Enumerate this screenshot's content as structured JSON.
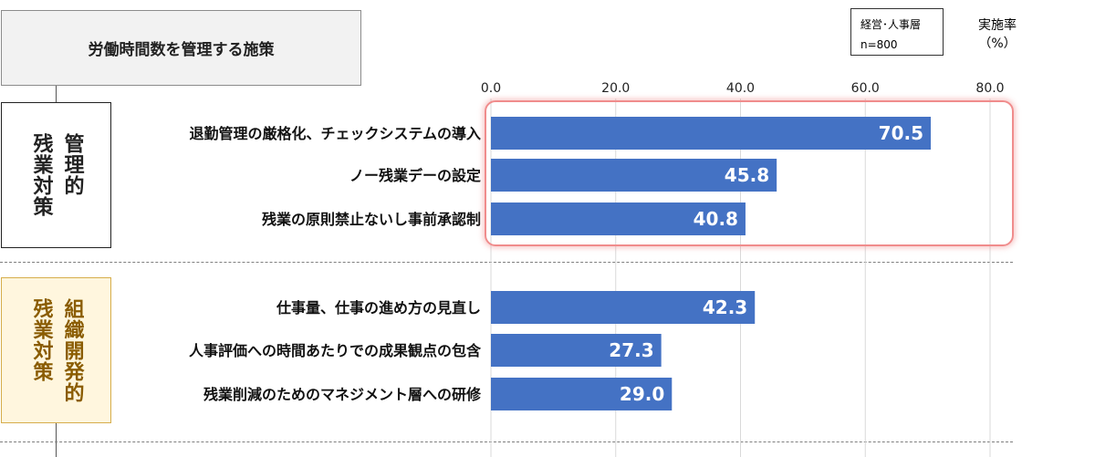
{
  "header": {
    "title": "労働時間数を管理する施策",
    "respondent_group": "経営･人事層",
    "sample_size": "n=800",
    "unit_label_line1": "実施率",
    "unit_label_line2": "（%）"
  },
  "groups": [
    {
      "label": "管理的\n残業対策",
      "type": "management"
    },
    {
      "label": "組織開発的\n残業対策",
      "type": "organizational"
    }
  ],
  "colors": {
    "bar": "#4472c4",
    "highlight": "#f08c8c",
    "org_group_fill": "#fff6de",
    "org_group_text": "#8a5c00"
  },
  "chart_data": {
    "type": "bar",
    "orientation": "horizontal",
    "categories": [
      "退勤管理の厳格化、チェックシステムの導入",
      "ノー残業デーの設定",
      "残業の原則禁止ないし事前承認制",
      "仕事量、仕事の進め方の見直し",
      "人事評価への時間あたりでの成果観点の包含",
      "残業削減のためのマネジメント層への研修"
    ],
    "values": [
      70.5,
      45.8,
      40.8,
      42.3,
      27.3,
      29.0
    ],
    "data_labels": [
      "70.5",
      "45.8",
      "40.8",
      "42.3",
      "27.3",
      "29.0"
    ],
    "xlim": [
      0,
      80
    ],
    "ticks": [
      "0.0",
      "20.0",
      "40.0",
      "60.0",
      "80.0"
    ],
    "grid": true
  }
}
